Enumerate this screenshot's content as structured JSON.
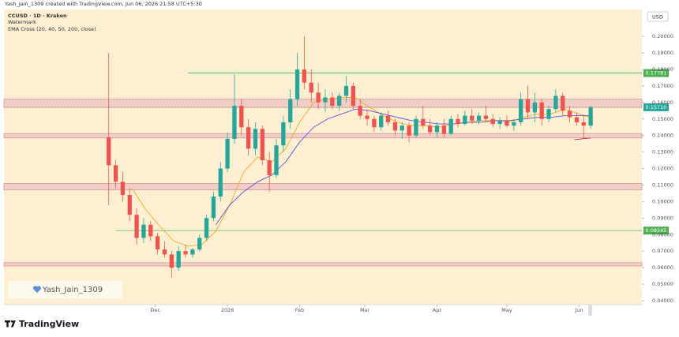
{
  "header": {
    "credit": "Yash_Jain_1309 created with TradingView.com, Jun 06, 2026 21:58 UTC+5:30",
    "symbol": "CCUSD · 1D · Kraken",
    "watermark_label": "Watermark",
    "indicator": "EMA Cross (20, 40, 50, 200, close)",
    "currency": "USD"
  },
  "watermark": "Yash_Jain_1309",
  "footer": {
    "brand": "TradingView"
  },
  "chart_data": {
    "type": "candlestick",
    "up_color": "#26a69a",
    "down_color": "#ef5350",
    "xlim": [
      -35,
      239
    ],
    "xticks": [
      {
        "value": 30,
        "label": "Dec"
      },
      {
        "value": 61,
        "label": "2026"
      },
      {
        "value": 92,
        "label": "Feb"
      },
      {
        "value": 120,
        "label": "Mar"
      },
      {
        "value": 151,
        "label": "Apr"
      },
      {
        "value": 181,
        "label": "May"
      },
      {
        "value": 212,
        "label": "Jun"
      }
    ],
    "ylim": [
      0.0376,
      0.2163
    ],
    "yticks": [
      {
        "value": 0.2,
        "label": "0.20000"
      },
      {
        "value": 0.19,
        "label": "0.19000"
      },
      {
        "value": 0.18,
        "label": "0.18000"
      },
      {
        "value": 0.17,
        "label": "0.17000"
      },
      {
        "value": 0.16,
        "label": "0.16000"
      },
      {
        "value": 0.15,
        "label": "0.15000"
      },
      {
        "value": 0.14,
        "label": "0.14000"
      },
      {
        "value": 0.13,
        "label": "0.13000"
      },
      {
        "value": 0.12,
        "label": "0.12000"
      },
      {
        "value": 0.11,
        "label": "0.11000"
      },
      {
        "value": 0.1,
        "label": "0.10000"
      },
      {
        "value": 0.09,
        "label": "0.09000"
      },
      {
        "value": 0.08,
        "label": "0.08000"
      },
      {
        "value": 0.07,
        "label": "0.07000"
      },
      {
        "value": 0.06,
        "label": "0.06000"
      },
      {
        "value": 0.05,
        "label": "0.05000"
      },
      {
        "value": 0.04,
        "label": "0.04000"
      }
    ],
    "x": [
      10,
      13,
      16,
      19,
      22,
      25,
      28,
      31,
      34,
      37,
      40,
      43,
      46,
      49,
      52,
      55,
      58,
      61,
      64,
      67,
      70,
      73,
      76,
      79,
      82,
      85,
      88,
      91,
      94,
      97,
      100,
      103,
      106,
      109,
      112,
      115,
      118,
      121,
      124,
      127,
      130,
      133,
      136,
      139,
      142,
      145,
      148,
      151,
      154,
      157,
      160,
      163,
      166,
      169,
      172,
      175,
      178,
      181,
      184,
      187,
      190,
      193,
      196,
      199,
      202,
      205,
      208,
      211,
      214,
      217
    ],
    "candles": [
      [
        0.139,
        0.19,
        0.098,
        0.122
      ],
      [
        0.122,
        0.125,
        0.108,
        0.112
      ],
      [
        0.112,
        0.118,
        0.1,
        0.104
      ],
      [
        0.104,
        0.108,
        0.088,
        0.092
      ],
      [
        0.092,
        0.096,
        0.074,
        0.078
      ],
      [
        0.078,
        0.09,
        0.075,
        0.086
      ],
      [
        0.086,
        0.088,
        0.076,
        0.079
      ],
      [
        0.079,
        0.081,
        0.068,
        0.071
      ],
      [
        0.071,
        0.076,
        0.066,
        0.068
      ],
      [
        0.068,
        0.07,
        0.054,
        0.06
      ],
      [
        0.06,
        0.073,
        0.058,
        0.07
      ],
      [
        0.07,
        0.074,
        0.066,
        0.068
      ],
      [
        0.068,
        0.072,
        0.066,
        0.071
      ],
      [
        0.071,
        0.08,
        0.07,
        0.078
      ],
      [
        0.078,
        0.092,
        0.076,
        0.09
      ],
      [
        0.09,
        0.106,
        0.088,
        0.103
      ],
      [
        0.103,
        0.124,
        0.1,
        0.12
      ],
      [
        0.12,
        0.142,
        0.118,
        0.138
      ],
      [
        0.138,
        0.177,
        0.135,
        0.158
      ],
      [
        0.158,
        0.162,
        0.14,
        0.145
      ],
      [
        0.145,
        0.15,
        0.128,
        0.132
      ],
      [
        0.132,
        0.148,
        0.128,
        0.144
      ],
      [
        0.144,
        0.146,
        0.122,
        0.125
      ],
      [
        0.125,
        0.13,
        0.106,
        0.116
      ],
      [
        0.116,
        0.138,
        0.114,
        0.134
      ],
      [
        0.134,
        0.152,
        0.13,
        0.148
      ],
      [
        0.148,
        0.168,
        0.144,
        0.162
      ],
      [
        0.162,
        0.19,
        0.158,
        0.18
      ],
      [
        0.18,
        0.2,
        0.168,
        0.172
      ],
      [
        0.172,
        0.18,
        0.16,
        0.166
      ],
      [
        0.166,
        0.172,
        0.156,
        0.16
      ],
      [
        0.16,
        0.168,
        0.154,
        0.163
      ],
      [
        0.163,
        0.166,
        0.156,
        0.158
      ],
      [
        0.158,
        0.166,
        0.155,
        0.164
      ],
      [
        0.164,
        0.176,
        0.16,
        0.17
      ],
      [
        0.17,
        0.172,
        0.156,
        0.158
      ],
      [
        0.158,
        0.162,
        0.15,
        0.152
      ],
      [
        0.152,
        0.156,
        0.146,
        0.15
      ],
      [
        0.15,
        0.152,
        0.142,
        0.145
      ],
      [
        0.145,
        0.154,
        0.143,
        0.152
      ],
      [
        0.152,
        0.155,
        0.146,
        0.148
      ],
      [
        0.148,
        0.15,
        0.14,
        0.143
      ],
      [
        0.143,
        0.148,
        0.138,
        0.146
      ],
      [
        0.146,
        0.148,
        0.136,
        0.14
      ],
      [
        0.14,
        0.152,
        0.139,
        0.15
      ],
      [
        0.15,
        0.158,
        0.144,
        0.146
      ],
      [
        0.146,
        0.15,
        0.14,
        0.142
      ],
      [
        0.142,
        0.148,
        0.139,
        0.146
      ],
      [
        0.146,
        0.15,
        0.139,
        0.141
      ],
      [
        0.141,
        0.152,
        0.14,
        0.15
      ],
      [
        0.15,
        0.153,
        0.145,
        0.147
      ],
      [
        0.147,
        0.155,
        0.146,
        0.152
      ],
      [
        0.152,
        0.156,
        0.147,
        0.149
      ],
      [
        0.149,
        0.154,
        0.147,
        0.152
      ],
      [
        0.152,
        0.158,
        0.148,
        0.15
      ],
      [
        0.15,
        0.153,
        0.145,
        0.147
      ],
      [
        0.147,
        0.151,
        0.144,
        0.149
      ],
      [
        0.149,
        0.152,
        0.145,
        0.146
      ],
      [
        0.146,
        0.15,
        0.143,
        0.148
      ],
      [
        0.148,
        0.166,
        0.146,
        0.162
      ],
      [
        0.162,
        0.17,
        0.15,
        0.154
      ],
      [
        0.154,
        0.166,
        0.148,
        0.16
      ],
      [
        0.16,
        0.162,
        0.146,
        0.15
      ],
      [
        0.15,
        0.158,
        0.148,
        0.156
      ],
      [
        0.156,
        0.168,
        0.154,
        0.164
      ],
      [
        0.164,
        0.166,
        0.152,
        0.155
      ],
      [
        0.155,
        0.158,
        0.148,
        0.151
      ],
      [
        0.151,
        0.154,
        0.146,
        0.148
      ],
      [
        0.148,
        0.152,
        0.138,
        0.146
      ],
      [
        0.146,
        0.158,
        0.144,
        0.157
      ]
    ],
    "ema_lines": [
      {
        "color": "#f5a623",
        "x": [
          20,
          26,
          32,
          38,
          44,
          50,
          56,
          62,
          68,
          74,
          80,
          86,
          92,
          98,
          104,
          110,
          116,
          122,
          128,
          134,
          140,
          146,
          152,
          158,
          164,
          170,
          176,
          182,
          188,
          194,
          200,
          206,
          212,
          217
        ],
        "values": [
          0.108,
          0.095,
          0.085,
          0.076,
          0.073,
          0.074,
          0.082,
          0.098,
          0.118,
          0.127,
          0.124,
          0.132,
          0.148,
          0.16,
          0.162,
          0.163,
          0.163,
          0.157,
          0.152,
          0.148,
          0.146,
          0.146,
          0.145,
          0.147,
          0.148,
          0.149,
          0.149,
          0.148,
          0.151,
          0.153,
          0.153,
          0.156,
          0.153,
          0.151
        ]
      },
      {
        "color": "#5b4fd6",
        "x": [
          56,
          62,
          68,
          74,
          80,
          86,
          92,
          98,
          104,
          110,
          116,
          122,
          128,
          134,
          140,
          146,
          152,
          158,
          164,
          170,
          176,
          182,
          188,
          194,
          200,
          206,
          212,
          217
        ],
        "values": [
          0.086,
          0.098,
          0.106,
          0.112,
          0.116,
          0.124,
          0.136,
          0.145,
          0.15,
          0.153,
          0.156,
          0.155,
          0.153,
          0.151,
          0.149,
          0.148,
          0.147,
          0.147,
          0.148,
          0.148,
          0.149,
          0.149,
          0.15,
          0.151,
          0.151,
          0.152,
          0.152,
          0.152
        ]
      },
      {
        "color": "#c2185b",
        "x": [
          210,
          217
        ],
        "values": [
          0.1375,
          0.1385
        ]
      }
    ],
    "zones": [
      {
        "from": 0.157,
        "to": 0.162
      },
      {
        "from": 0.1385,
        "to": 0.1412
      },
      {
        "from": 0.107,
        "to": 0.111
      },
      {
        "from": 0.061,
        "to": 0.063
      }
    ],
    "zone_color": "#e8b4bc",
    "levels": [
      {
        "value": 0.17781,
        "x_start": 44,
        "color": "#4caf50"
      },
      {
        "value": 0.08245,
        "x_start": 13,
        "color": "#4caf50"
      }
    ],
    "last_price": {
      "value": 0.1571,
      "label": "0.15710",
      "color": "#26a69a"
    }
  }
}
